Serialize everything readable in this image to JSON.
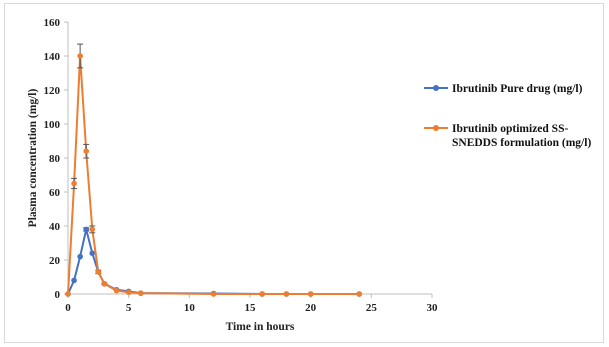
{
  "chart_data": {
    "type": "line",
    "title": "",
    "xlabel": "Time in hours",
    "ylabel": "Plasma concentration (mg/l)",
    "xlim": [
      0,
      30
    ],
    "ylim": [
      0,
      160
    ],
    "xticks": [
      0,
      5,
      10,
      15,
      20,
      25,
      30
    ],
    "yticks": [
      0,
      20,
      40,
      60,
      80,
      100,
      120,
      140,
      160
    ],
    "grid": false,
    "legend_position": "right",
    "series": [
      {
        "name": "Ibrutinib Pure drug (mg/l)",
        "color": "#4472c4",
        "points": [
          {
            "x": 0,
            "y": 0,
            "err": 0
          },
          {
            "x": 0.5,
            "y": 8,
            "err": 0
          },
          {
            "x": 1,
            "y": 22,
            "err": 0
          },
          {
            "x": 1.5,
            "y": 38,
            "err": 1
          },
          {
            "x": 2,
            "y": 24,
            "err": 0
          },
          {
            "x": 2.5,
            "y": 13,
            "err": 0
          },
          {
            "x": 3,
            "y": 6,
            "err": 0
          },
          {
            "x": 4,
            "y": 2.5,
            "err": 0
          },
          {
            "x": 5,
            "y": 1.5,
            "err": 0
          },
          {
            "x": 6,
            "y": 0.5,
            "err": 0
          },
          {
            "x": 12,
            "y": 0.3,
            "err": 0
          },
          {
            "x": 16,
            "y": 0,
            "err": 0
          },
          {
            "x": 18,
            "y": 0,
            "err": 0
          },
          {
            "x": 20,
            "y": 0,
            "err": 0
          },
          {
            "x": 24,
            "y": 0,
            "err": 0
          }
        ]
      },
      {
        "name": "Ibrutinib optimized SS-SNEDDS formulation (mg/l)",
        "color": "#ed7d31",
        "points": [
          {
            "x": 0,
            "y": 0,
            "err": 0
          },
          {
            "x": 0.5,
            "y": 65,
            "err": 3
          },
          {
            "x": 1,
            "y": 140,
            "err": 7
          },
          {
            "x": 1.5,
            "y": 84,
            "err": 4
          },
          {
            "x": 2,
            "y": 38,
            "err": 2
          },
          {
            "x": 2.5,
            "y": 13,
            "err": 1
          },
          {
            "x": 3,
            "y": 6,
            "err": 0.5
          },
          {
            "x": 4,
            "y": 2,
            "err": 0
          },
          {
            "x": 5,
            "y": 1,
            "err": 0
          },
          {
            "x": 6,
            "y": 0.5,
            "err": 0
          },
          {
            "x": 12,
            "y": 0,
            "err": 0
          },
          {
            "x": 16,
            "y": 0,
            "err": 0
          },
          {
            "x": 18,
            "y": 0,
            "err": 0
          },
          {
            "x": 20,
            "y": 0,
            "err": 0
          },
          {
            "x": 24,
            "y": 0,
            "err": 0
          }
        ]
      }
    ],
    "legend": {
      "entries": [
        {
          "lines": [
            "Ibrutinib Pure drug (mg/l)"
          ]
        },
        {
          "lines": [
            "Ibrutinib optimized SS-",
            "SNEDDS formulation (mg/l)"
          ]
        }
      ]
    }
  }
}
